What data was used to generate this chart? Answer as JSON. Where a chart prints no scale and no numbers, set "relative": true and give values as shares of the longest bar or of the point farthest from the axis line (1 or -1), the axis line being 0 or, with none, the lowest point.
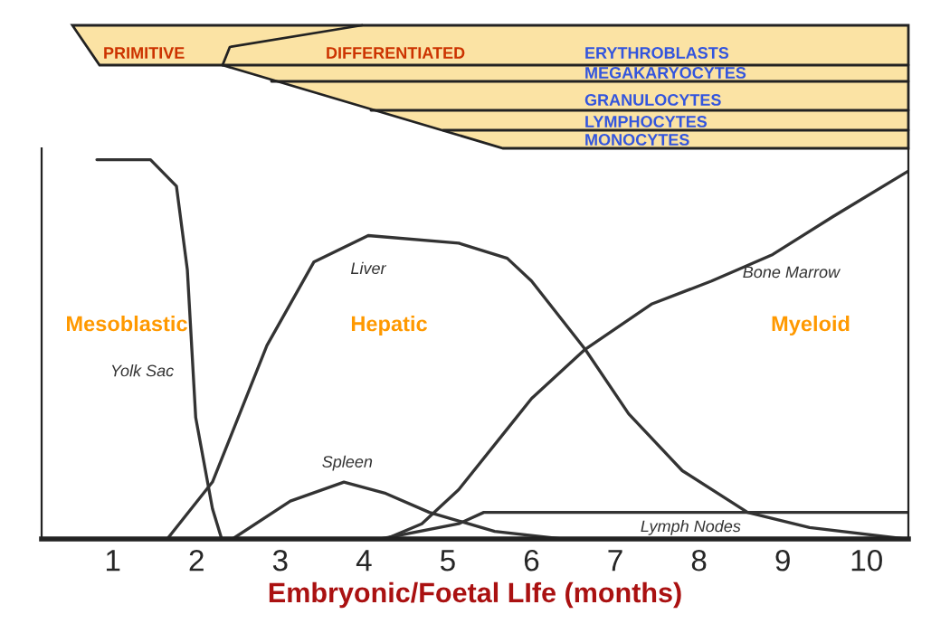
{
  "chart_data": {
    "type": "line",
    "relative": true,
    "xlabel": "Embryonic/Foetal LIfe (months)",
    "xlim": [
      0.15,
      10.5
    ],
    "xticks": [
      1,
      2,
      3,
      4,
      5,
      6,
      7,
      8,
      9,
      10
    ],
    "grid": false,
    "legend": false,
    "marker": "none",
    "line_style": "solid",
    "annotations": [
      "PRIMITIVE",
      "DIFFERENTIATED",
      "ERYTHROBLASTS",
      "MEGAKARYOCYTES",
      "GRANULOCYTES",
      "LYMPHOCYTES",
      "MONOCYTES",
      "Mesoblastic",
      "Hepatic",
      "Myeloid"
    ],
    "series": [
      {
        "name": "Yolk Sac",
        "color": "#333333",
        "x": [
          0.81,
          1.45,
          1.76,
          1.89,
          1.99,
          2.19,
          2.3
        ],
        "values": [
          1,
          1,
          0.93,
          0.71,
          0.32,
          0.08,
          0
        ]
      },
      {
        "name": "Liver",
        "color": "#333333",
        "x": [
          1.65,
          2.19,
          2.84,
          3.4,
          4.05,
          5.13,
          5.71,
          6.0,
          6.64,
          7.16,
          7.8,
          8.58,
          9.32,
          10.46
        ],
        "values": [
          0,
          0.15,
          0.51,
          0.73,
          0.8,
          0.78,
          0.74,
          0.68,
          0.5,
          0.33,
          0.18,
          0.07,
          0.03,
          0
        ]
      },
      {
        "name": "Spleen",
        "color": "#333333",
        "x": [
          2.43,
          3.12,
          3.76,
          4.26,
          4.78,
          5.56,
          6.36
        ],
        "values": [
          0,
          0.1,
          0.15,
          0.12,
          0.07,
          0.02,
          0
        ]
      },
      {
        "name": "Lymph Nodes",
        "color": "#333333",
        "x": [
          4.2,
          5.13,
          5.43,
          6.0,
          10.5
        ],
        "values": [
          0,
          0.04,
          0.07,
          0.07,
          0.07
        ]
      },
      {
        "name": "Bone Marrow",
        "color": "#333333",
        "x": [
          4.26,
          4.69,
          5.13,
          5.71,
          6.0,
          6.64,
          7.44,
          8.15,
          8.88,
          9.6,
          10.5
        ],
        "values": [
          0,
          0.04,
          0.13,
          0.29,
          0.37,
          0.5,
          0.62,
          0.68,
          0.75,
          0.85,
          0.97
        ]
      }
    ]
  }
}
